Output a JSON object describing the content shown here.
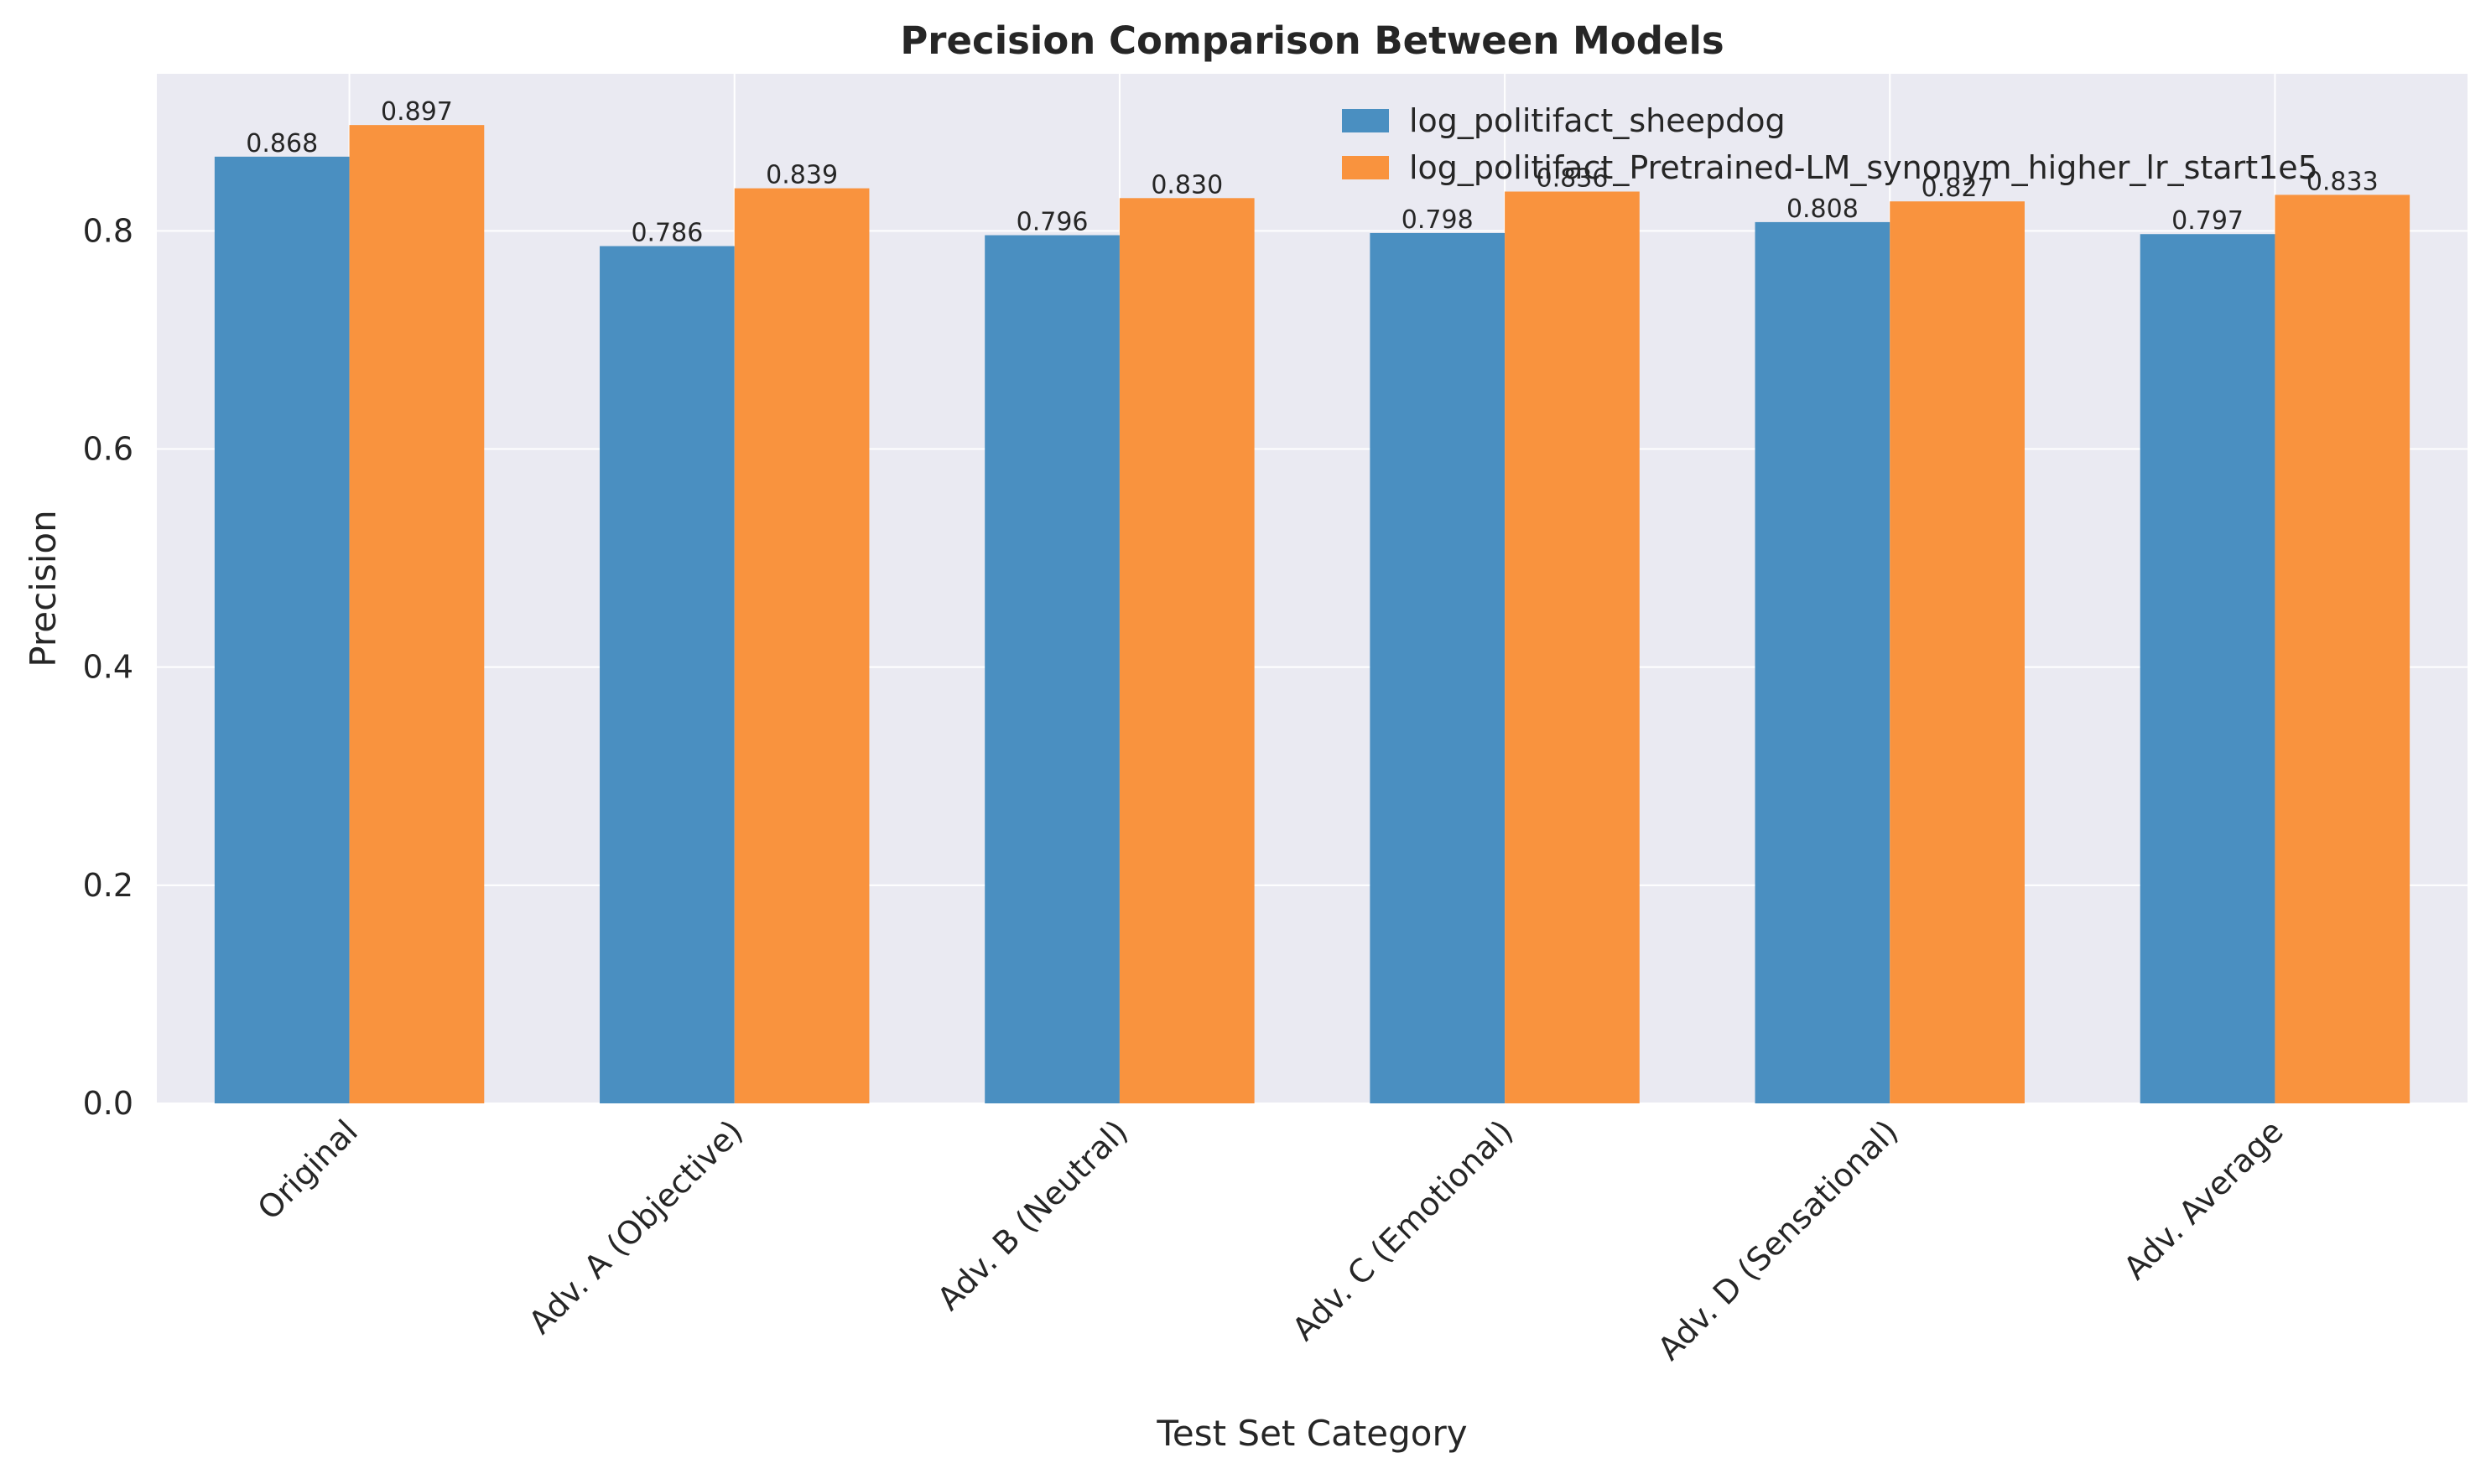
{
  "chart_data": {
    "type": "bar",
    "title": "Precision Comparison Between Models",
    "xlabel": "Test Set Category",
    "ylabel": "Precision",
    "categories": [
      "Original",
      "Adv. A (Objective)",
      "Adv. B (Neutral)",
      "Adv. C (Emotional)",
      "Adv. D (Sensational)",
      "Adv. Average"
    ],
    "series": [
      {
        "name": "log_politifact_sheepdog",
        "values": [
          0.868,
          0.786,
          0.796,
          0.798,
          0.808,
          0.797
        ],
        "labels": [
          "0.868",
          "0.786",
          "0.796",
          "0.798",
          "0.808",
          "0.797"
        ],
        "color": "#4a8fc1"
      },
      {
        "name": "log_politifact_Pretrained-LM_synonym_higher_lr_start1e5",
        "values": [
          0.897,
          0.839,
          0.83,
          0.836,
          0.827,
          0.833
        ],
        "labels": [
          "0.897",
          "0.839",
          "0.830",
          "0.836",
          "0.827",
          "0.833"
        ],
        "color": "#f9933e"
      }
    ],
    "ylim": [
      0,
      0.944
    ],
    "yticks": [
      "0.0",
      "0.2",
      "0.4",
      "0.6",
      "0.8"
    ],
    "ytick_values": [
      0,
      0.2,
      0.4,
      0.6,
      0.8
    ],
    "grid": true,
    "legend_position": "top-right",
    "background": "#eaeaf2"
  }
}
